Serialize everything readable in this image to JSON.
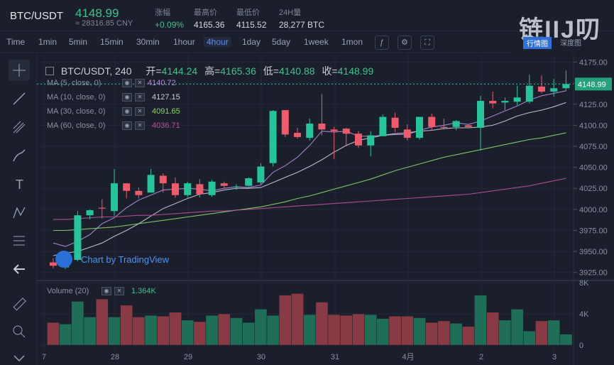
{
  "ticker": {
    "pair": "BTC/USDT",
    "price": "4148.99",
    "cny": "≈ 28316.85 CNY",
    "stats": [
      {
        "key": "涨幅",
        "value": "+0.09%",
        "up": true
      },
      {
        "key": "最高价",
        "value": "4165.36",
        "up": false
      },
      {
        "key": "最低价",
        "value": "4115.52",
        "up": false
      },
      {
        "key": "24H量",
        "value": "28,277 BTC",
        "up": false
      }
    ]
  },
  "logo": {
    "text": "链IIJ叨",
    "tab1": "行情图",
    "tab2": "深度图"
  },
  "toolbar": {
    "intervals": [
      "Time",
      "1min",
      "5min",
      "15min",
      "30min",
      "1hour",
      "4hour",
      "1day",
      "5day",
      "1week",
      "1mon"
    ],
    "active": "4hour"
  },
  "legend": {
    "title": "BTC/USDT, 240",
    "open_label": "开=",
    "open": "4144.24",
    "high_label": "高=",
    "high": "4165.36",
    "low_label": "低=",
    "low": "4140.88",
    "close_label": "收=",
    "close": "4148.99",
    "ma": [
      {
        "label": "MA (5, close, 0)",
        "value": "4140.72",
        "color": "#b68be0"
      },
      {
        "label": "MA (10, close, 0)",
        "value": "4127.15",
        "color": "#c9cdd8"
      },
      {
        "label": "MA (30, close, 0)",
        "value": "4091.65",
        "color": "#8bd56a"
      },
      {
        "label": "MA (60, close, 0)",
        "value": "4036.71",
        "color": "#c04e9e"
      }
    ],
    "volume_label": "Volume (20)",
    "volume_value": "1.364K"
  },
  "badge": "Chart by TradingView",
  "chart_data": {
    "type": "candlestick",
    "price_axis": {
      "ticks": [
        "4175.00",
        "4150.00",
        "4125.00",
        "4100.00",
        "4075.00",
        "4050.00",
        "4025.00",
        "4000.00",
        "3975.00",
        "3950.00",
        "3925.00"
      ],
      "range": [
        3918,
        4178
      ]
    },
    "last_price": "4148.99",
    "volume_axis": {
      "ticks": [
        "8K",
        "4K",
        "0"
      ],
      "range": [
        0,
        8000
      ]
    },
    "x_labels": [
      "7",
      "28",
      "29",
      "30",
      "31",
      "4月",
      "2",
      "3"
    ],
    "candles": [
      {
        "o": 3937,
        "h": 3942,
        "l": 3930,
        "c": 3933
      },
      {
        "o": 3931,
        "h": 3945,
        "l": 3929,
        "c": 3944
      },
      {
        "o": 3940,
        "h": 3998,
        "l": 3938,
        "c": 3993
      },
      {
        "o": 3993,
        "h": 4000,
        "l": 3988,
        "c": 3999
      },
      {
        "o": 4002,
        "h": 4012,
        "l": 3989,
        "c": 4001
      },
      {
        "o": 3998,
        "h": 4048,
        "l": 3992,
        "c": 4031
      },
      {
        "o": 4031,
        "h": 4030,
        "l": 4013,
        "c": 4022
      },
      {
        "o": 4022,
        "h": 4026,
        "l": 4013,
        "c": 4017
      },
      {
        "o": 4020,
        "h": 4048,
        "l": 4020,
        "c": 4041
      },
      {
        "o": 4040,
        "h": 4043,
        "l": 4020,
        "c": 4031
      },
      {
        "o": 4031,
        "h": 4038,
        "l": 4014,
        "c": 4017
      },
      {
        "o": 4017,
        "h": 4033,
        "l": 4014,
        "c": 4031
      },
      {
        "o": 4030,
        "h": 4036,
        "l": 4014,
        "c": 4018
      },
      {
        "o": 4017,
        "h": 4035,
        "l": 4015,
        "c": 4033
      },
      {
        "o": 4031,
        "h": 4033,
        "l": 4025,
        "c": 4028
      },
      {
        "o": 4027,
        "h": 4030,
        "l": 4023,
        "c": 4027
      },
      {
        "o": 4028,
        "h": 4038,
        "l": 4027,
        "c": 4037
      },
      {
        "o": 4032,
        "h": 4055,
        "l": 4030,
        "c": 4051
      },
      {
        "o": 4055,
        "h": 4118,
        "l": 4051,
        "c": 4117
      },
      {
        "o": 4118,
        "h": 4118,
        "l": 4086,
        "c": 4089
      },
      {
        "o": 4091,
        "h": 4097,
        "l": 4084,
        "c": 4086
      },
      {
        "o": 4085,
        "h": 4108,
        "l": 4082,
        "c": 4102
      },
      {
        "o": 4102,
        "h": 4137,
        "l": 4088,
        "c": 4095
      },
      {
        "o": 4095,
        "h": 4098,
        "l": 4060,
        "c": 4093
      },
      {
        "o": 4096,
        "h": 4097,
        "l": 4075,
        "c": 4090
      },
      {
        "o": 4090,
        "h": 4093,
        "l": 4073,
        "c": 4076
      },
      {
        "o": 4076,
        "h": 4093,
        "l": 4063,
        "c": 4088
      },
      {
        "o": 4087,
        "h": 4113,
        "l": 4087,
        "c": 4110
      },
      {
        "o": 4109,
        "h": 4115,
        "l": 4092,
        "c": 4097
      },
      {
        "o": 4095,
        "h": 4101,
        "l": 4082,
        "c": 4085
      },
      {
        "o": 4085,
        "h": 4110,
        "l": 4083,
        "c": 4110
      },
      {
        "o": 4110,
        "h": 4114,
        "l": 4094,
        "c": 4098
      },
      {
        "o": 4098,
        "h": 4108,
        "l": 4095,
        "c": 4097
      },
      {
        "o": 4098,
        "h": 4106,
        "l": 4094,
        "c": 4105
      },
      {
        "o": 4100,
        "h": 4101,
        "l": 4098,
        "c": 4098
      },
      {
        "o": 4097,
        "h": 4135,
        "l": 4070,
        "c": 4129
      },
      {
        "o": 4129,
        "h": 4140,
        "l": 4120,
        "c": 4126
      },
      {
        "o": 4127,
        "h": 4133,
        "l": 4118,
        "c": 4129
      },
      {
        "o": 4128,
        "h": 4147,
        "l": 4124,
        "c": 4133
      },
      {
        "o": 4128,
        "h": 4160,
        "l": 4126,
        "c": 4147
      },
      {
        "o": 4146,
        "h": 4159,
        "l": 4138,
        "c": 4140
      },
      {
        "o": 4140,
        "h": 4155,
        "l": 4134,
        "c": 4144
      },
      {
        "o": 4144,
        "h": 4165,
        "l": 4141,
        "c": 4149
      }
    ],
    "volume": [
      2900,
      2700,
      5600,
      3600,
      5900,
      3600,
      5100,
      3600,
      3800,
      3700,
      4200,
      3200,
      3000,
      3800,
      4000,
      3500,
      2900,
      4600,
      3800,
      6400,
      6600,
      3900,
      5500,
      3900,
      3800,
      4000,
      3900,
      3400,
      3700,
      3700,
      3500,
      2900,
      3100,
      2800,
      2400,
      6400,
      4200,
      3200,
      4600,
      1800,
      3100,
      3200,
      1400
    ],
    "ma": [
      {
        "name": "MA5",
        "color": "#b68be0",
        "values": [
          3960,
          3956,
          3962,
          3970,
          3983,
          3990,
          4002,
          4011,
          4017,
          4023,
          4024,
          4025,
          4024,
          4022,
          4025,
          4027,
          4026,
          4029,
          4044,
          4052,
          4062,
          4076,
          4093,
          4092,
          4093,
          4087,
          4087,
          4088,
          4089,
          4089,
          4094,
          4098,
          4100,
          4103,
          4101,
          4105,
          4111,
          4117,
          4123,
          4130,
          4135,
          4138,
          4141
        ]
      },
      {
        "name": "MA10",
        "color": "#c9cdd8",
        "values": [
          3945,
          3948,
          3950,
          3955,
          3960,
          3968,
          3975,
          3983,
          3992,
          4001,
          4007,
          4013,
          4018,
          4020,
          4023,
          4025,
          4025,
          4026,
          4032,
          4038,
          4044,
          4051,
          4059,
          4068,
          4076,
          4082,
          4085,
          4088,
          4090,
          4091,
          4093,
          4094,
          4096,
          4097,
          4097,
          4098,
          4100,
          4105,
          4111,
          4115,
          4118,
          4122,
          4127
        ]
      },
      {
        "name": "MA30",
        "color": "#8bd56a",
        "values": [
          3975,
          3975,
          3976,
          3977,
          3978,
          3979,
          3981,
          3983,
          3985,
          3987,
          3989,
          3991,
          3993,
          3995,
          3997,
          3999,
          4001,
          4003,
          4006,
          4009,
          4013,
          4016,
          4020,
          4024,
          4028,
          4032,
          4036,
          4041,
          4046,
          4050,
          4054,
          4058,
          4062,
          4065,
          4068,
          4071,
          4074,
          4077,
          4080,
          4083,
          4085,
          4088,
          4091
        ]
      },
      {
        "name": "MA60",
        "color": "#c04e9e",
        "values": [
          3988,
          3988,
          3989,
          3990,
          3991,
          3991,
          3992,
          3993,
          3993,
          3994,
          3995,
          3996,
          3997,
          3998,
          3998,
          3999,
          4000,
          4001,
          4002,
          4003,
          4004,
          4005,
          4006,
          4007,
          4008,
          4009,
          4010,
          4011,
          4012,
          4013,
          4014,
          4015,
          4016,
          4017,
          4018,
          4020,
          4022,
          4024,
          4026,
          4028,
          4031,
          4034,
          4037
        ]
      }
    ]
  }
}
